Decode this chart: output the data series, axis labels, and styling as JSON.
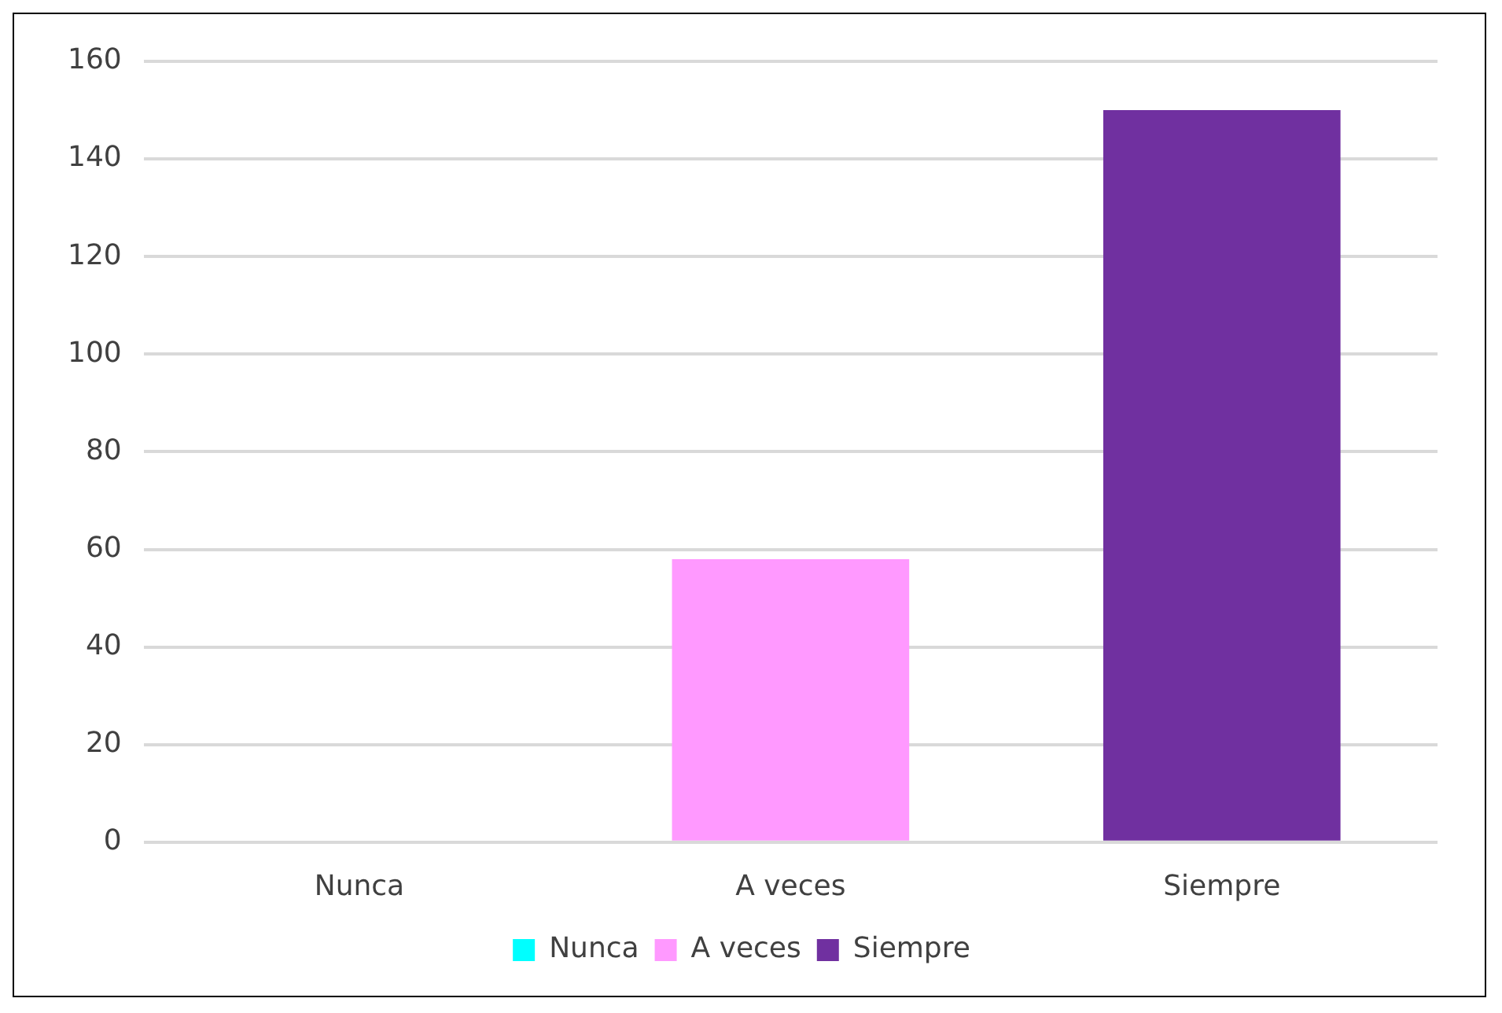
{
  "chart_data": {
    "type": "bar",
    "categories": [
      "Nunca",
      "A veces",
      "Siempre"
    ],
    "series": [
      {
        "name": "Nunca",
        "color": "#00ffff",
        "values": [
          0,
          null,
          null
        ]
      },
      {
        "name": "A veces",
        "color": "#ff99ff",
        "values": [
          null,
          58,
          null
        ]
      },
      {
        "name": "Siempre",
        "color": "#7030a0",
        "values": [
          null,
          null,
          150
        ]
      }
    ],
    "ylim": [
      0,
      160
    ],
    "yticks": [
      0,
      20,
      40,
      60,
      80,
      100,
      120,
      140,
      160
    ],
    "grid": "y",
    "legend": "bottom"
  }
}
